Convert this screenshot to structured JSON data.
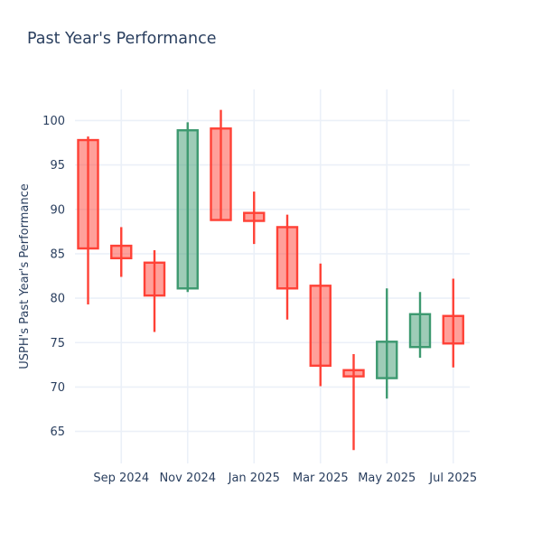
{
  "title": "Past Year's Performance",
  "chart_data": {
    "type": "candlestick",
    "title": "Past Year's Performance",
    "xlabel": "",
    "ylabel": "USPH's Past Year's Performance",
    "legend": "none",
    "grid": true,
    "y_ticks": [
      65,
      70,
      75,
      80,
      85,
      90,
      95,
      100
    ],
    "ylim": [
      61.4,
      103.5
    ],
    "x_tick_labels": [
      "Sep 2024",
      "Nov 2024",
      "Jan 2025",
      "Mar 2025",
      "May 2025",
      "Jul 2025"
    ],
    "x_tick_positions": [
      1,
      3,
      5,
      7,
      9,
      11
    ],
    "categories": [
      "Aug 2024",
      "Sep 2024",
      "Oct 2024",
      "Nov 2024",
      "Dec 2024",
      "Jan 2025",
      "Feb 2025",
      "Mar 2025",
      "Apr 2025",
      "May 2025",
      "Jun 2025",
      "Jul 2025"
    ],
    "ohlc": [
      {
        "date": "Aug 2024",
        "open": 97.8,
        "high": 98.2,
        "low": 79.3,
        "close": 85.6
      },
      {
        "date": "Sep 2024",
        "open": 85.9,
        "high": 88.0,
        "low": 82.4,
        "close": 84.5
      },
      {
        "date": "Oct 2024",
        "open": 84.0,
        "high": 85.4,
        "low": 76.2,
        "close": 80.3
      },
      {
        "date": "Nov 2024",
        "open": 81.1,
        "high": 99.8,
        "low": 80.7,
        "close": 98.9
      },
      {
        "date": "Dec 2024",
        "open": 99.1,
        "high": 101.2,
        "low": 88.8,
        "close": 88.8
      },
      {
        "date": "Jan 2025",
        "open": 89.6,
        "high": 92.0,
        "low": 86.1,
        "close": 88.7
      },
      {
        "date": "Feb 2025",
        "open": 88.0,
        "high": 89.4,
        "low": 77.6,
        "close": 81.1
      },
      {
        "date": "Mar 2025",
        "open": 81.4,
        "high": 83.9,
        "low": 70.1,
        "close": 72.4
      },
      {
        "date": "Apr 2025",
        "open": 71.9,
        "high": 73.7,
        "low": 62.9,
        "close": 71.2
      },
      {
        "date": "May 2025",
        "open": 71.0,
        "high": 81.1,
        "low": 68.7,
        "close": 75.1
      },
      {
        "date": "Jun 2025",
        "open": 74.5,
        "high": 80.7,
        "low": 73.3,
        "close": 78.2
      },
      {
        "date": "Jul 2025",
        "open": 78.0,
        "high": 82.2,
        "low": 72.2,
        "close": 74.9
      }
    ],
    "colors": {
      "increasing_line": "#3D9970",
      "increasing_fill": "rgba(61,153,112,0.5)",
      "decreasing_line": "#FF4136",
      "decreasing_fill": "rgba(255,65,54,0.5)",
      "text": "#2a3f5f",
      "grid": "#EBF0F8",
      "background": "#ffffff"
    }
  }
}
